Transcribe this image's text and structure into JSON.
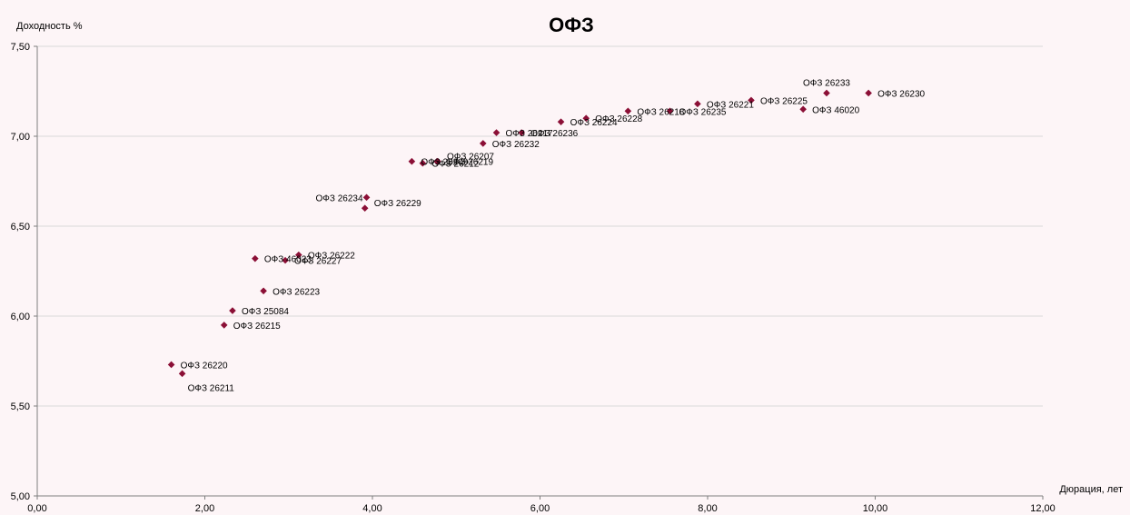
{
  "chart_data": {
    "type": "scatter",
    "title": "ОФЗ",
    "xlabel": "Дюрация, лет",
    "ylabel": "Доходность %",
    "xlim": [
      0,
      12
    ],
    "ylim": [
      5,
      7.5
    ],
    "x_ticks": [
      "0,00",
      "2,00",
      "4,00",
      "6,00",
      "8,00",
      "10,00",
      "12,00"
    ],
    "y_ticks": [
      "5,00",
      "5,50",
      "6,00",
      "6,50",
      "7,00",
      "7,50"
    ],
    "grid": "horizontal",
    "marker": "diamond",
    "marker_color": "#8b0f36",
    "points": [
      {
        "label": "ОФЗ 26220",
        "x": 1.6,
        "y": 5.73,
        "label_pos": "right"
      },
      {
        "label": "ОФЗ 26211",
        "x": 1.73,
        "y": 5.68,
        "label_pos": "below-right"
      },
      {
        "label": "ОФЗ 26215",
        "x": 2.23,
        "y": 5.95,
        "label_pos": "right"
      },
      {
        "label": "ОФЗ 25084",
        "x": 2.33,
        "y": 6.03,
        "label_pos": "right"
      },
      {
        "label": "ОФЗ 46023",
        "x": 2.6,
        "y": 6.32,
        "label_pos": "right"
      },
      {
        "label": "ОФЗ 26223",
        "x": 2.7,
        "y": 6.14,
        "label_pos": "right"
      },
      {
        "label": "ОФЗ 26227",
        "x": 2.96,
        "y": 6.31,
        "label_pos": "right"
      },
      {
        "label": "ОФЗ 26222",
        "x": 3.12,
        "y": 6.34,
        "label_pos": "right"
      },
      {
        "label": "ОФЗ 26234",
        "x": 3.93,
        "y": 6.66,
        "label_pos": "left"
      },
      {
        "label": "ОФЗ 26229",
        "x": 3.91,
        "y": 6.6,
        "label_pos": "right-up"
      },
      {
        "label": "ОФЗ 26209",
        "x": 4.47,
        "y": 6.86,
        "label_pos": "right"
      },
      {
        "label": "ОФЗ 26212",
        "x": 4.6,
        "y": 6.85,
        "label_pos": "right"
      },
      {
        "label": "ОФЗ 26219",
        "x": 4.77,
        "y": 6.86,
        "label_pos": "right"
      },
      {
        "label": "ОФЗ 26207",
        "x": 4.78,
        "y": 6.86,
        "label_pos": "right-up"
      },
      {
        "label": "ОФЗ 26232",
        "x": 5.32,
        "y": 6.96,
        "label_pos": "right"
      },
      {
        "label": "ОФЗ 26217",
        "x": 5.48,
        "y": 7.02,
        "label_pos": "right"
      },
      {
        "label": "ОФЗ 26236",
        "x": 5.78,
        "y": 7.02,
        "label_pos": "right"
      },
      {
        "label": "ОФЗ 26224",
        "x": 6.25,
        "y": 7.08,
        "label_pos": "right"
      },
      {
        "label": "ОФЗ 26228",
        "x": 6.55,
        "y": 7.1,
        "label_pos": "right"
      },
      {
        "label": "ОФЗ 26218",
        "x": 7.05,
        "y": 7.14,
        "label_pos": "right"
      },
      {
        "label": "ОФЗ 26235",
        "x": 7.55,
        "y": 7.14,
        "label_pos": "right"
      },
      {
        "label": "ОФЗ 26221",
        "x": 7.88,
        "y": 7.18,
        "label_pos": "right"
      },
      {
        "label": "ОФЗ 26225",
        "x": 8.52,
        "y": 7.2,
        "label_pos": "right"
      },
      {
        "label": "ОФЗ 46020",
        "x": 9.14,
        "y": 7.15,
        "label_pos": "right"
      },
      {
        "label": "ОФЗ 26233",
        "x": 9.42,
        "y": 7.24,
        "label_pos": "above"
      },
      {
        "label": "ОФЗ 26230",
        "x": 9.92,
        "y": 7.24,
        "label_pos": "right"
      }
    ]
  }
}
